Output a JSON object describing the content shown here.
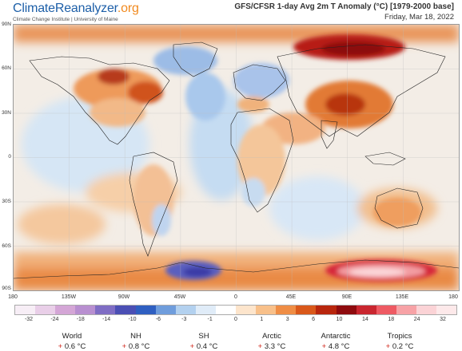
{
  "header": {
    "logo_main": "ClimateReanalyzer",
    "logo_suffix": ".org",
    "logo_sub": "Climate Change Institute | University of Maine",
    "title": "GFS/CFSR 1-day Avg 2m T Anomaly (°C) [1979-2000 base]",
    "date": "Friday, Mar 18, 2022"
  },
  "lat_labels": [
    "90N",
    "60N",
    "30N",
    "0",
    "30S",
    "60S",
    "90S"
  ],
  "lon_labels": [
    "180",
    "135W",
    "90W",
    "45W",
    "0",
    "45E",
    "90E",
    "135E",
    "180"
  ],
  "scale": {
    "labels": [
      "-32",
      "-24",
      "-18",
      "-14",
      "-10",
      "-6",
      "-3",
      "-1",
      "0",
      "1",
      "3",
      "6",
      "10",
      "14",
      "18",
      "24",
      "32"
    ],
    "colors": [
      "#f7eef6",
      "#e9cfe8",
      "#d4a6d6",
      "#b88fd0",
      "#7f6dc4",
      "#4b4fb4",
      "#2f5fc1",
      "#6f9ddc",
      "#b3d1ef",
      "#e0ecf8",
      "#ffffff",
      "#fde5cc",
      "#f8c08a",
      "#ef8d45",
      "#d9581a",
      "#b8260d",
      "#8e0b0e",
      "#c9262f",
      "#ee5a63",
      "#f7a2a6",
      "#fbd3d6",
      "#fde9ea"
    ]
  },
  "stats": [
    {
      "label": "World",
      "value": "+ 0.6 °C"
    },
    {
      "label": "NH",
      "value": "+ 0.8 °C"
    },
    {
      "label": "SH",
      "value": "+ 0.4 °C"
    },
    {
      "label": "Arctic",
      "value": "+ 3.3 °C"
    },
    {
      "label": "Antarctic",
      "value": "+ 4.8 °C"
    },
    {
      "label": "Tropics",
      "value": "+ 0.2 °C"
    }
  ]
}
